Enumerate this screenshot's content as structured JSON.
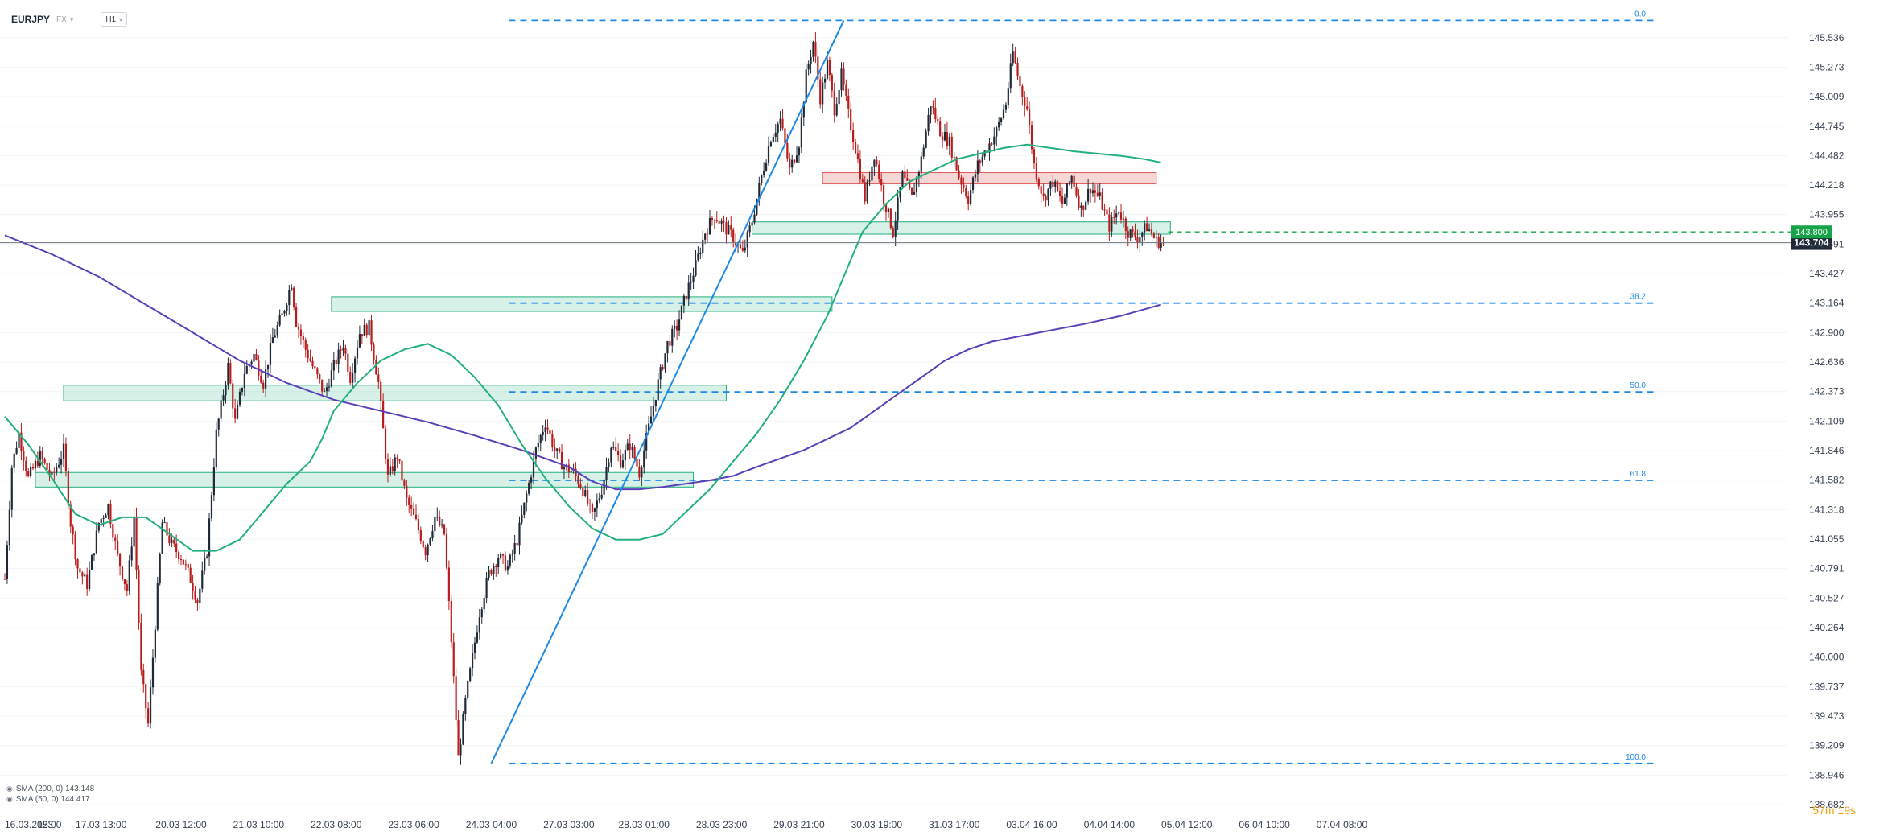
{
  "toolbar": {
    "symbol": "EURJPY",
    "asset_class": "FX",
    "timeframe": "H1"
  },
  "legend": {
    "sma200": "SMA (200, 0) 143.148",
    "sma50": "SMA (50, 0) 144.417"
  },
  "countdown": {
    "minutes": "57m",
    "seconds": "19s"
  },
  "colors": {
    "up": "#1f2937",
    "down": "#b91c1c",
    "sma50": "#22b07d",
    "sma200": "#5b3fb8",
    "fib": "#1e88e5",
    "trend": "#1e88e5",
    "zone_green": "#22b07d",
    "zone_red": "#e05a5a",
    "last_price": "#1f2937",
    "marked_price": "#16a34a"
  },
  "chart_data": {
    "type": "candlestick",
    "symbol": "EURJPY",
    "timeframe": "H1",
    "ylim": [
      138.682,
      145.7
    ],
    "y_ticks": [
      "145.536",
      "145.273",
      "145.009",
      "144.745",
      "144.482",
      "144.218",
      "143.955",
      "143.691",
      "143.427",
      "143.164",
      "142.900",
      "142.636",
      "142.373",
      "142.109",
      "141.846",
      "141.582",
      "141.318",
      "141.055",
      "140.791",
      "140.527",
      "140.264",
      "140.000",
      "139.737",
      "139.473",
      "139.209",
      "138.946",
      "138.682"
    ],
    "x_ticks": [
      {
        "label": "16.03.2023",
        "bar": 0
      },
      {
        "label": "15:00",
        "bar": 19
      },
      {
        "label": "17.03 13:00",
        "bar": 41
      },
      {
        "label": "20.03 12:00",
        "bar": 75
      },
      {
        "label": "21.03 10:00",
        "bar": 108
      },
      {
        "label": "22.03 08:00",
        "bar": 141
      },
      {
        "label": "23.03 06:00",
        "bar": 174
      },
      {
        "label": "24.03 04:00",
        "bar": 207
      },
      {
        "label": "27.03 03:00",
        "bar": 240
      },
      {
        "label": "28.03 01:00",
        "bar": 272
      },
      {
        "label": "28.03 23:00",
        "bar": 305
      },
      {
        "label": "29.03 21:00",
        "bar": 338
      },
      {
        "label": "30.03 19:00",
        "bar": 371
      },
      {
        "label": "31.03 17:00",
        "bar": 404
      },
      {
        "label": "03.04 16:00",
        "bar": 437
      },
      {
        "label": "04.04 14:00",
        "bar": 470
      },
      {
        "label": "05.04 12:00",
        "bar": 503
      },
      {
        "label": "06.04 10:00",
        "bar": 536
      },
      {
        "label": "07.04 08:00",
        "bar": 569
      }
    ],
    "last_bar": 493,
    "last_price": 143.704,
    "marked_price": 143.8,
    "fib_levels": [
      {
        "label": "0.0",
        "price": 145.69
      },
      {
        "label": "38.2",
        "price": 143.164
      },
      {
        "label": "50.0",
        "price": 142.37
      },
      {
        "label": "61.8",
        "price": 141.58
      },
      {
        "label": "100.0",
        "price": 139.05
      }
    ],
    "fib_range_bars": [
      207,
      517
    ],
    "trendline": {
      "start": [
        207,
        139.05
      ],
      "end": [
        357,
        145.69
      ]
    },
    "zones": [
      {
        "color": "green",
        "bars": [
          25,
          307
        ],
        "prices": [
          142.43,
          142.29
        ]
      },
      {
        "color": "green",
        "bars": [
          13,
          293
        ],
        "prices": [
          141.65,
          141.52
        ]
      },
      {
        "color": "green",
        "bars": [
          139,
          352
        ],
        "prices": [
          143.22,
          143.09
        ]
      },
      {
        "color": "green",
        "bars": [
          318,
          496
        ],
        "prices": [
          143.89,
          143.78
        ]
      },
      {
        "color": "red",
        "bars": [
          348,
          490
        ],
        "prices": [
          144.33,
          144.23
        ]
      }
    ],
    "sma50_path": [
      [
        0,
        142.15
      ],
      [
        10,
        141.9
      ],
      [
        20,
        141.6
      ],
      [
        30,
        141.28
      ],
      [
        40,
        141.18
      ],
      [
        50,
        141.25
      ],
      [
        60,
        141.25
      ],
      [
        70,
        141.1
      ],
      [
        80,
        140.95
      ],
      [
        90,
        140.95
      ],
      [
        100,
        141.05
      ],
      [
        110,
        141.3
      ],
      [
        120,
        141.55
      ],
      [
        130,
        141.75
      ],
      [
        135,
        141.95
      ],
      [
        140,
        142.2
      ],
      [
        150,
        142.45
      ],
      [
        160,
        142.65
      ],
      [
        170,
        142.75
      ],
      [
        180,
        142.8
      ],
      [
        190,
        142.7
      ],
      [
        200,
        142.5
      ],
      [
        210,
        142.25
      ],
      [
        220,
        141.9
      ],
      [
        230,
        141.6
      ],
      [
        240,
        141.35
      ],
      [
        250,
        141.15
      ],
      [
        260,
        141.05
      ],
      [
        270,
        141.05
      ],
      [
        280,
        141.1
      ],
      [
        290,
        141.3
      ],
      [
        300,
        141.5
      ],
      [
        310,
        141.75
      ],
      [
        320,
        142.0
      ],
      [
        330,
        142.3
      ],
      [
        340,
        142.65
      ],
      [
        350,
        143.05
      ],
      [
        357,
        143.4
      ],
      [
        365,
        143.8
      ],
      [
        375,
        144.05
      ],
      [
        385,
        144.25
      ],
      [
        395,
        144.35
      ],
      [
        405,
        144.45
      ],
      [
        415,
        144.5
      ],
      [
        425,
        144.55
      ],
      [
        435,
        144.58
      ],
      [
        445,
        144.55
      ],
      [
        455,
        144.52
      ],
      [
        465,
        144.5
      ],
      [
        475,
        144.48
      ],
      [
        485,
        144.45
      ],
      [
        492,
        144.42
      ]
    ],
    "sma200_path": [
      [
        0,
        143.77
      ],
      [
        20,
        143.6
      ],
      [
        40,
        143.4
      ],
      [
        60,
        143.15
      ],
      [
        80,
        142.9
      ],
      [
        100,
        142.65
      ],
      [
        120,
        142.45
      ],
      [
        140,
        142.3
      ],
      [
        160,
        142.2
      ],
      [
        180,
        142.1
      ],
      [
        200,
        141.98
      ],
      [
        220,
        141.85
      ],
      [
        240,
        141.7
      ],
      [
        250,
        141.57
      ],
      [
        260,
        141.5
      ],
      [
        270,
        141.5
      ],
      [
        280,
        141.52
      ],
      [
        290,
        141.55
      ],
      [
        300,
        141.58
      ],
      [
        310,
        141.62
      ],
      [
        320,
        141.7
      ],
      [
        340,
        141.85
      ],
      [
        360,
        142.05
      ],
      [
        380,
        142.35
      ],
      [
        400,
        142.65
      ],
      [
        410,
        142.75
      ],
      [
        420,
        142.82
      ],
      [
        440,
        142.9
      ],
      [
        460,
        142.98
      ],
      [
        475,
        143.05
      ],
      [
        492,
        143.15
      ]
    ],
    "price_path": [
      [
        0,
        140.7
      ],
      [
        3,
        141.7
      ],
      [
        6,
        142.0
      ],
      [
        10,
        141.6
      ],
      [
        15,
        141.8
      ],
      [
        20,
        141.6
      ],
      [
        25,
        141.85
      ],
      [
        28,
        141.2
      ],
      [
        31,
        140.8
      ],
      [
        35,
        140.65
      ],
      [
        40,
        141.2
      ],
      [
        44,
        141.35
      ],
      [
        48,
        140.9
      ],
      [
        52,
        140.6
      ],
      [
        55,
        141.25
      ],
      [
        58,
        139.85
      ],
      [
        61,
        139.4
      ],
      [
        64,
        140.3
      ],
      [
        67,
        141.2
      ],
      [
        71,
        141.0
      ],
      [
        75,
        140.9
      ],
      [
        79,
        140.7
      ],
      [
        82,
        140.5
      ],
      [
        86,
        140.95
      ],
      [
        90,
        142.0
      ],
      [
        95,
        142.6
      ],
      [
        98,
        142.1
      ],
      [
        102,
        142.55
      ],
      [
        106,
        142.7
      ],
      [
        110,
        142.45
      ],
      [
        114,
        142.85
      ],
      [
        118,
        143.05
      ],
      [
        122,
        143.35
      ],
      [
        124,
        143.0
      ],
      [
        128,
        142.75
      ],
      [
        132,
        142.55
      ],
      [
        136,
        142.35
      ],
      [
        140,
        142.6
      ],
      [
        144,
        142.8
      ],
      [
        147,
        142.5
      ],
      [
        151,
        142.9
      ],
      [
        155,
        142.95
      ],
      [
        159,
        142.45
      ],
      [
        163,
        141.6
      ],
      [
        167,
        141.8
      ],
      [
        171,
        141.4
      ],
      [
        175,
        141.2
      ],
      [
        179,
        140.95
      ],
      [
        183,
        141.25
      ],
      [
        187,
        141.1
      ],
      [
        190,
        140.15
      ],
      [
        193,
        139.1
      ],
      [
        196,
        139.6
      ],
      [
        199,
        140.0
      ],
      [
        202,
        140.4
      ],
      [
        206,
        140.75
      ],
      [
        210,
        140.9
      ],
      [
        214,
        140.8
      ],
      [
        218,
        141.05
      ],
      [
        222,
        141.45
      ],
      [
        226,
        141.85
      ],
      [
        230,
        142.1
      ],
      [
        234,
        141.85
      ],
      [
        238,
        141.7
      ],
      [
        242,
        141.65
      ],
      [
        246,
        141.5
      ],
      [
        250,
        141.25
      ],
      [
        254,
        141.5
      ],
      [
        258,
        141.9
      ],
      [
        262,
        141.75
      ],
      [
        266,
        141.9
      ],
      [
        270,
        141.65
      ],
      [
        274,
        142.05
      ],
      [
        278,
        142.45
      ],
      [
        282,
        142.8
      ],
      [
        286,
        142.95
      ],
      [
        290,
        143.25
      ],
      [
        294,
        143.5
      ],
      [
        298,
        143.8
      ],
      [
        302,
        143.95
      ],
      [
        306,
        143.85
      ],
      [
        310,
        143.75
      ],
      [
        314,
        143.6
      ],
      [
        318,
        143.9
      ],
      [
        322,
        144.3
      ],
      [
        326,
        144.65
      ],
      [
        330,
        144.8
      ],
      [
        334,
        144.35
      ],
      [
        338,
        144.6
      ],
      [
        341,
        145.2
      ],
      [
        344,
        145.5
      ],
      [
        347,
        145.0
      ],
      [
        350,
        145.3
      ],
      [
        353,
        144.9
      ],
      [
        356,
        145.2
      ],
      [
        359,
        144.85
      ],
      [
        362,
        144.55
      ],
      [
        366,
        144.1
      ],
      [
        370,
        144.5
      ],
      [
        374,
        144.1
      ],
      [
        378,
        143.8
      ],
      [
        382,
        144.3
      ],
      [
        386,
        144.1
      ],
      [
        390,
        144.45
      ],
      [
        394,
        144.95
      ],
      [
        398,
        144.7
      ],
      [
        402,
        144.6
      ],
      [
        406,
        144.3
      ],
      [
        410,
        144.1
      ],
      [
        414,
        144.4
      ],
      [
        418,
        144.55
      ],
      [
        422,
        144.7
      ],
      [
        426,
        144.95
      ],
      [
        429,
        145.4
      ],
      [
        432,
        145.1
      ],
      [
        435,
        144.9
      ],
      [
        438,
        144.4
      ],
      [
        442,
        144.1
      ],
      [
        446,
        144.25
      ],
      [
        450,
        144.05
      ],
      [
        454,
        144.3
      ],
      [
        458,
        144.0
      ],
      [
        462,
        144.2
      ],
      [
        466,
        144.1
      ],
      [
        470,
        143.85
      ],
      [
        474,
        144.0
      ],
      [
        478,
        143.8
      ],
      [
        482,
        143.75
      ],
      [
        486,
        143.85
      ],
      [
        490,
        143.72
      ],
      [
        493,
        143.704
      ]
    ]
  }
}
